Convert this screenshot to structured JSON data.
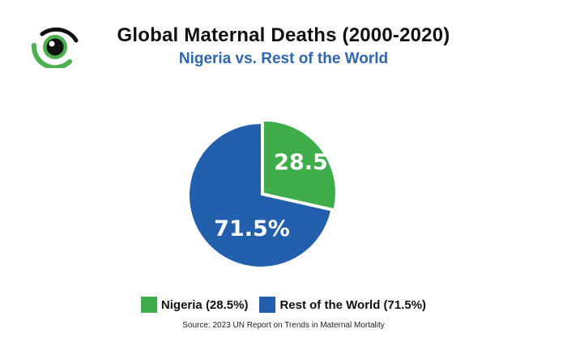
{
  "header": {
    "title": "Global Maternal Deaths (2000-2020)",
    "subtitle": "Nigeria vs. Rest of the World"
  },
  "logo": {
    "icon": "eye-logo-icon",
    "colors": {
      "green": "#4caf50",
      "black": "#111111"
    }
  },
  "chart_data": {
    "type": "pie",
    "title": "Global Maternal Deaths (2000-2020)",
    "subtitle": "Nigeria vs. Rest of the World",
    "slices": [
      {
        "label": "Nigeria (28.5%)",
        "value": 28.5,
        "display": "28.5%",
        "color": "#3fae4a",
        "exploded": true
      },
      {
        "label": "Rest of the World (71.5%)",
        "value": 71.5,
        "display": "71.5%",
        "color": "#2260ad",
        "exploded": false
      }
    ],
    "legend_placement": "bottom"
  },
  "legend": {
    "items": [
      {
        "label": "Nigeria (28.5%)",
        "color": "#3fae4a"
      },
      {
        "label": "Rest of the World (71.5%)",
        "color": "#2260ad"
      }
    ]
  },
  "source": "Source: 2023 UN Report on Trends in Maternal Mortality"
}
